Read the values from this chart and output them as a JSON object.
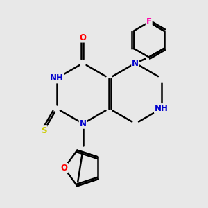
{
  "bg_color": "#e8e8e8",
  "atom_colors": {
    "C": "#000000",
    "N": "#0000cd",
    "O": "#ff0000",
    "S": "#cccc00",
    "F": "#ff00aa",
    "H": "#6699aa"
  },
  "bond_color": "#000000",
  "bond_width": 1.8,
  "figsize": [
    3.0,
    3.0
  ],
  "dpi": 100
}
